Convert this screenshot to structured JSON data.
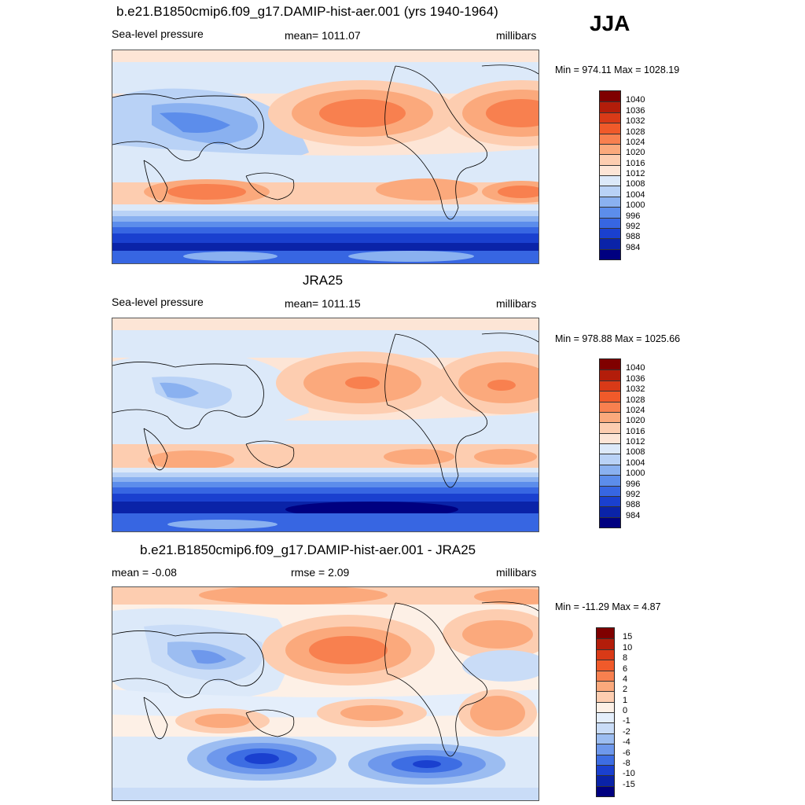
{
  "season": "JJA",
  "panels": [
    {
      "title": "b.e21.B1850cmip6.f09_g17.DAMIP-hist-aer.001 (yrs 1940-1964)",
      "left_label": "Sea-level pressure",
      "center_label": "mean= 1011.07",
      "units": "millibars",
      "minmax": "Min = 974.11 Max = 1028.19",
      "colorbar": {
        "labels": [
          "1040",
          "1036",
          "1032",
          "1028",
          "1024",
          "1020",
          "1016",
          "1012",
          "1008",
          "1004",
          "1000",
          "996",
          "992",
          "988",
          "984"
        ],
        "colors": [
          "#7f0000",
          "#b31d0a",
          "#d93a17",
          "#f05a2a",
          "#f8804f",
          "#fba97c",
          "#fdcdb0",
          "#fde5d6",
          "#dce9f9",
          "#b9d2f6",
          "#8ab1f0",
          "#5c8deb",
          "#3766e2",
          "#1a40cf",
          "#0a23a8",
          "#000080"
        ]
      }
    },
    {
      "title": "JRA25",
      "left_label": "Sea-level pressure",
      "center_label": "mean= 1011.15",
      "units": "millibars",
      "minmax": "Min = 978.88 Max = 1025.66",
      "colorbar": {
        "labels": [
          "1040",
          "1036",
          "1032",
          "1028",
          "1024",
          "1020",
          "1016",
          "1012",
          "1008",
          "1004",
          "1000",
          "996",
          "992",
          "988",
          "984"
        ],
        "colors": [
          "#7f0000",
          "#b31d0a",
          "#d93a17",
          "#f05a2a",
          "#f8804f",
          "#fba97c",
          "#fdcdb0",
          "#fde5d6",
          "#dce9f9",
          "#b9d2f6",
          "#8ab1f0",
          "#5c8deb",
          "#3766e2",
          "#1a40cf",
          "#0a23a8",
          "#000080"
        ]
      }
    },
    {
      "title": "b.e21.B1850cmip6.f09_g17.DAMIP-hist-aer.001 - JRA25",
      "left_label": "mean =  -0.08",
      "center_label": "rmse =   2.09",
      "units": "millibars",
      "minmax": "Min = -11.29 Max =   4.87",
      "colorbar": {
        "labels": [
          "15",
          "10",
          "8",
          "6",
          "4",
          "2",
          "1",
          "0",
          "-1",
          "-2",
          "-4",
          "-6",
          "-8",
          "-10",
          "-15"
        ],
        "colors": [
          "#7f0000",
          "#b31d0a",
          "#d93a17",
          "#f05a2a",
          "#f8804f",
          "#fba97c",
          "#fdcdb0",
          "#fdf0e6",
          "#e4eefb",
          "#c9dcf7",
          "#9cbdf1",
          "#6e98ec",
          "#3d6de3",
          "#1a40cf",
          "#0a23a8",
          "#000080"
        ]
      }
    }
  ]
}
